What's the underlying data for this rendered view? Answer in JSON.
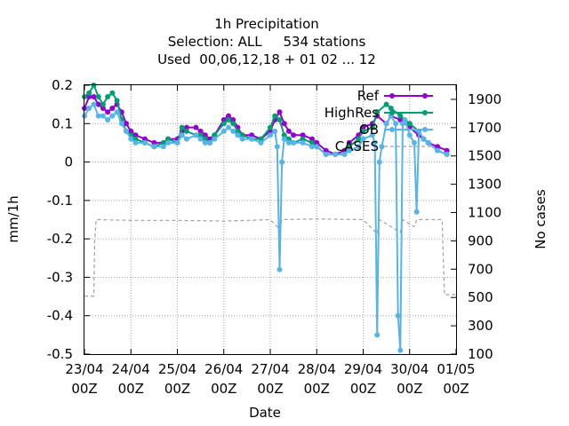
{
  "chart_data": {
    "type": "line",
    "title": [
      "1h Precipitation",
      "Selection: ALL     534 stations",
      "Used  00,06,12,18 + 01 02 ... 12"
    ],
    "xlabel": "Date",
    "ylabel": "mm/1h",
    "y2label": "No cases",
    "xlim": [
      "2024-04-23 00Z",
      "2024-05-01 00Z"
    ],
    "ylim": [
      -0.5,
      0.2
    ],
    "y2lim": [
      100,
      2000
    ],
    "grid": true,
    "legend_position": "top-right",
    "x_ticks": [
      {
        "line1": "23/04",
        "line2": "00Z"
      },
      {
        "line1": "24/04",
        "line2": "00Z"
      },
      {
        "line1": "25/04",
        "line2": "00Z"
      },
      {
        "line1": "26/04",
        "line2": "00Z"
      },
      {
        "line1": "27/04",
        "line2": "00Z"
      },
      {
        "line1": "28/04",
        "line2": "00Z"
      },
      {
        "line1": "29/04",
        "line2": "00Z"
      },
      {
        "line1": "30/04",
        "line2": "00Z"
      },
      {
        "line1": "01/05",
        "line2": "00Z"
      }
    ],
    "y_ticks": [
      "0.2",
      "0.1",
      "0",
      "-0.1",
      "-0.2",
      "-0.3",
      "-0.4",
      "-0.5"
    ],
    "y_tick_values": [
      0.2,
      0.1,
      0,
      -0.1,
      -0.2,
      -0.3,
      -0.4,
      -0.5
    ],
    "y2_ticks": [
      "1900",
      "1700",
      "1500",
      "1300",
      "1100",
      "900",
      "700",
      "500",
      "300",
      "100"
    ],
    "y2_tick_values": [
      1900,
      1700,
      1500,
      1300,
      1100,
      900,
      700,
      500,
      300,
      100
    ],
    "series": [
      {
        "name": "Ref",
        "color": "#9400d3",
        "axis": "y1",
        "points": [
          [
            0.0,
            0.14
          ],
          [
            0.1,
            0.17
          ],
          [
            0.2,
            0.17
          ],
          [
            0.3,
            0.15
          ],
          [
            0.4,
            0.14
          ],
          [
            0.5,
            0.13
          ],
          [
            0.6,
            0.14
          ],
          [
            0.7,
            0.15
          ],
          [
            0.8,
            0.13
          ],
          [
            0.9,
            0.1
          ],
          [
            1.0,
            0.08
          ],
          [
            1.1,
            0.07
          ],
          [
            1.3,
            0.06
          ],
          [
            1.5,
            0.05
          ],
          [
            1.7,
            0.05
          ],
          [
            1.8,
            0.06
          ],
          [
            2.0,
            0.06
          ],
          [
            2.1,
            0.08
          ],
          [
            2.2,
            0.09
          ],
          [
            2.4,
            0.09
          ],
          [
            2.5,
            0.08
          ],
          [
            2.6,
            0.07
          ],
          [
            2.7,
            0.06
          ],
          [
            2.8,
            0.07
          ],
          [
            3.0,
            0.11
          ],
          [
            3.1,
            0.12
          ],
          [
            3.2,
            0.11
          ],
          [
            3.3,
            0.09
          ],
          [
            3.4,
            0.07
          ],
          [
            3.6,
            0.07
          ],
          [
            3.8,
            0.06
          ],
          [
            4.0,
            0.08
          ],
          [
            4.1,
            0.11
          ],
          [
            4.2,
            0.13
          ],
          [
            4.3,
            0.1
          ],
          [
            4.4,
            0.08
          ],
          [
            4.5,
            0.07
          ],
          [
            4.7,
            0.07
          ],
          [
            4.9,
            0.06
          ],
          [
            5.0,
            0.05
          ],
          [
            5.2,
            0.03
          ],
          [
            5.4,
            0.02
          ],
          [
            5.6,
            0.03
          ],
          [
            5.7,
            0.05
          ],
          [
            5.9,
            0.07
          ],
          [
            6.0,
            0.09
          ],
          [
            6.2,
            0.1
          ],
          [
            6.3,
            0.12
          ],
          [
            6.5,
            0.1
          ],
          [
            6.6,
            0.12
          ],
          [
            6.8,
            0.11
          ],
          [
            7.0,
            0.09
          ],
          [
            7.2,
            0.07
          ],
          [
            7.3,
            0.06
          ],
          [
            7.4,
            0.05
          ],
          [
            7.6,
            0.04
          ],
          [
            7.8,
            0.03
          ]
        ]
      },
      {
        "name": "HighRes",
        "color": "#009e73",
        "axis": "y1",
        "points": [
          [
            0.0,
            0.17
          ],
          [
            0.1,
            0.18
          ],
          [
            0.2,
            0.2
          ],
          [
            0.3,
            0.17
          ],
          [
            0.4,
            0.15
          ],
          [
            0.5,
            0.17
          ],
          [
            0.6,
            0.18
          ],
          [
            0.7,
            0.16
          ],
          [
            0.8,
            0.11
          ],
          [
            0.9,
            0.08
          ],
          [
            1.0,
            0.07
          ],
          [
            1.1,
            0.06
          ],
          [
            1.3,
            0.05
          ],
          [
            1.5,
            0.04
          ],
          [
            1.7,
            0.05
          ],
          [
            1.8,
            0.06
          ],
          [
            2.0,
            0.05
          ],
          [
            2.1,
            0.09
          ],
          [
            2.2,
            0.08
          ],
          [
            2.4,
            0.07
          ],
          [
            2.5,
            0.07
          ],
          [
            2.6,
            0.06
          ],
          [
            2.7,
            0.05
          ],
          [
            2.8,
            0.07
          ],
          [
            3.0,
            0.1
          ],
          [
            3.1,
            0.11
          ],
          [
            3.2,
            0.1
          ],
          [
            3.3,
            0.08
          ],
          [
            3.4,
            0.07
          ],
          [
            3.6,
            0.06
          ],
          [
            3.8,
            0.06
          ],
          [
            4.0,
            0.09
          ],
          [
            4.1,
            0.12
          ],
          [
            4.2,
            0.11
          ],
          [
            4.3,
            0.07
          ],
          [
            4.4,
            0.06
          ],
          [
            4.5,
            0.05
          ],
          [
            4.7,
            0.06
          ],
          [
            4.9,
            0.05
          ],
          [
            5.0,
            0.04
          ],
          [
            5.2,
            0.02
          ],
          [
            5.4,
            0.02
          ],
          [
            5.6,
            0.02
          ],
          [
            5.7,
            0.04
          ],
          [
            5.9,
            0.06
          ],
          [
            6.0,
            0.08
          ],
          [
            6.2,
            0.09
          ],
          [
            6.3,
            0.13
          ],
          [
            6.5,
            0.15
          ],
          [
            6.6,
            0.14
          ],
          [
            6.8,
            0.12
          ],
          [
            7.0,
            0.1
          ],
          [
            7.2,
            0.08
          ],
          [
            7.3,
            0.06
          ],
          [
            7.4,
            0.05
          ],
          [
            7.6,
            0.03
          ],
          [
            7.8,
            0.02
          ]
        ]
      },
      {
        "name": "OB",
        "color": "#56b4e9",
        "axis": "y1",
        "points": [
          [
            0.0,
            0.12
          ],
          [
            0.1,
            0.14
          ],
          [
            0.2,
            0.15
          ],
          [
            0.3,
            0.12
          ],
          [
            0.4,
            0.12
          ],
          [
            0.5,
            0.11
          ],
          [
            0.6,
            0.12
          ],
          [
            0.7,
            0.13
          ],
          [
            0.8,
            0.1
          ],
          [
            0.9,
            0.08
          ],
          [
            1.0,
            0.06
          ],
          [
            1.1,
            0.05
          ],
          [
            1.3,
            0.05
          ],
          [
            1.5,
            0.04
          ],
          [
            1.7,
            0.04
          ],
          [
            1.8,
            0.05
          ],
          [
            2.0,
            0.05
          ],
          [
            2.1,
            0.07
          ],
          [
            2.2,
            0.06
          ],
          [
            2.4,
            0.07
          ],
          [
            2.5,
            0.06
          ],
          [
            2.6,
            0.05
          ],
          [
            2.7,
            0.05
          ],
          [
            2.8,
            0.06
          ],
          [
            3.0,
            0.08
          ],
          [
            3.1,
            0.09
          ],
          [
            3.2,
            0.08
          ],
          [
            3.3,
            0.07
          ],
          [
            3.4,
            0.06
          ],
          [
            3.6,
            0.06
          ],
          [
            3.8,
            0.05
          ],
          [
            4.0,
            0.07
          ],
          [
            4.1,
            0.08
          ],
          [
            4.15,
            0.04
          ],
          [
            4.2,
            -0.28
          ],
          [
            4.25,
            0.0
          ],
          [
            4.3,
            0.06
          ],
          [
            4.4,
            0.05
          ],
          [
            4.5,
            0.05
          ],
          [
            4.7,
            0.05
          ],
          [
            4.9,
            0.04
          ],
          [
            5.0,
            0.04
          ],
          [
            5.2,
            0.02
          ],
          [
            5.4,
            0.02
          ],
          [
            5.6,
            0.02
          ],
          [
            5.7,
            0.03
          ],
          [
            5.9,
            0.04
          ],
          [
            6.0,
            0.06
          ],
          [
            6.2,
            0.07
          ],
          [
            6.25,
            0.05
          ],
          [
            6.3,
            -0.45
          ],
          [
            6.35,
            0.0
          ],
          [
            6.4,
            0.04
          ],
          [
            6.5,
            0.1
          ],
          [
            6.6,
            0.12
          ],
          [
            6.7,
            0.1
          ],
          [
            6.75,
            -0.4
          ],
          [
            6.8,
            -0.49
          ],
          [
            6.85,
            0.1
          ],
          [
            6.9,
            0.11
          ],
          [
            7.0,
            0.07
          ],
          [
            7.1,
            0.05
          ],
          [
            7.15,
            -0.13
          ],
          [
            7.2,
            0.08
          ],
          [
            7.3,
            0.06
          ],
          [
            7.4,
            0.05
          ],
          [
            7.6,
            0.03
          ],
          [
            7.8,
            0.02
          ]
        ]
      },
      {
        "name": "CASES",
        "color": "#a0a0a0",
        "axis": "y2",
        "dashed": true,
        "points": [
          [
            0.0,
            510
          ],
          [
            0.2,
            510
          ],
          [
            0.22,
            900
          ],
          [
            0.25,
            1050
          ],
          [
            1.0,
            1045
          ],
          [
            2.0,
            1045
          ],
          [
            3.0,
            1040
          ],
          [
            4.0,
            1050
          ],
          [
            4.15,
            1000
          ],
          [
            4.2,
            980
          ],
          [
            4.25,
            1050
          ],
          [
            5.0,
            1055
          ],
          [
            6.0,
            1050
          ],
          [
            6.3,
            950
          ],
          [
            6.35,
            1050
          ],
          [
            6.8,
            960
          ],
          [
            6.85,
            1050
          ],
          [
            7.1,
            1000
          ],
          [
            7.15,
            1050
          ],
          [
            7.7,
            1050
          ],
          [
            7.75,
            520
          ],
          [
            8.0,
            520
          ]
        ]
      }
    ]
  }
}
